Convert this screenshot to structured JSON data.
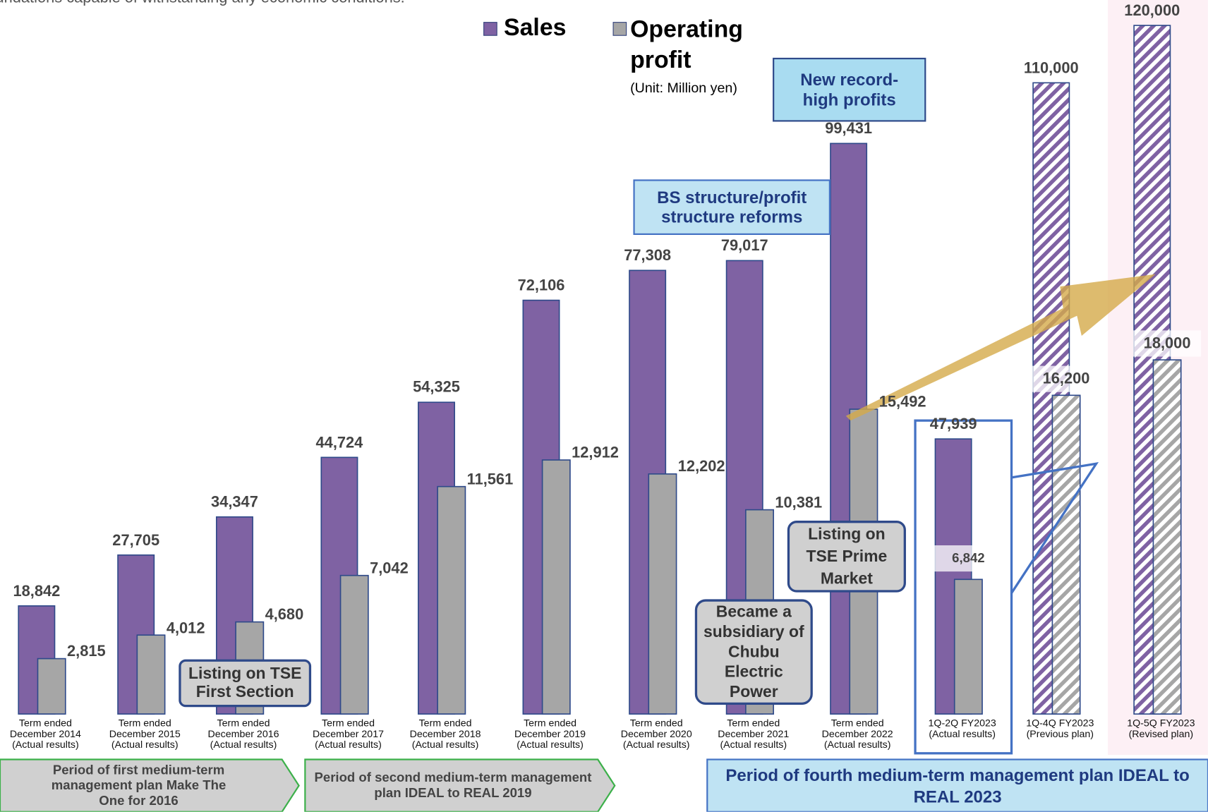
{
  "subtitle": "undations capable of withstanding any economic conditions.",
  "chart_data": {
    "type": "bar",
    "categories": [
      "Term ended December 2014 (Actual results)",
      "Term ended December 2015 (Actual results)",
      "Term ended December 2016 (Actual results)",
      "Term ended December 2017 (Actual results)",
      "Term ended December 2018 (Actual results)",
      "Term ended December 2019 (Actual results)",
      "Term ended December 2020 (Actual results)",
      "Term ended December 2021 (Actual results)",
      "Term ended December 2022 (Actual results)",
      "1Q-2Q FY2023 (Actual results)",
      "1Q-4Q FY2023 (Previous plan)",
      "1Q-5Q FY2023 (Revised plan)"
    ],
    "series": [
      {
        "name": "Sales",
        "color": "#7f62a3",
        "values": [
          18842,
          27705,
          34347,
          44724,
          54325,
          72106,
          77308,
          79017,
          99431,
          47939,
          110000,
          120000
        ],
        "value_labels": [
          "18,842",
          "27,705",
          "34,347",
          "44,724",
          "54,325",
          "72,106",
          "77,308",
          "79,017",
          "99,431",
          "47,939",
          "110,000",
          "120,000"
        ]
      },
      {
        "name": "Operating profit",
        "color": "#a6a6a6",
        "axis": "y2",
        "values": [
          2815,
          4012,
          4680,
          7042,
          11561,
          12912,
          12202,
          10381,
          15492,
          6842,
          16200,
          18000
        ],
        "value_labels": [
          "2,815",
          "4,012",
          "4,680",
          "7,042",
          "11,561",
          "12,912",
          "12,202",
          "10,381",
          "15,492",
          "6,842",
          "16,200",
          "18,000"
        ]
      }
    ],
    "ylim": [
      0,
      120000
    ],
    "y2lim": [
      0,
      35000
    ],
    "hatched": [
      10,
      11
    ],
    "unit": "(Unit: Million yen)",
    "annotations": [
      "New record-high profits",
      "BS structure/profit structure reforms",
      "Listing on TSE First Section",
      "Listing on TSE Prime Market",
      "Became a subsidiary of Chubu Electric Power"
    ],
    "periods": [
      "Period of first medium-term management plan Make The One for 2016",
      "Period of second medium-term management plan IDEAL to REAL 2019",
      "Period of fourth medium-term management plan IDEAL to REAL 2023"
    ]
  }
}
